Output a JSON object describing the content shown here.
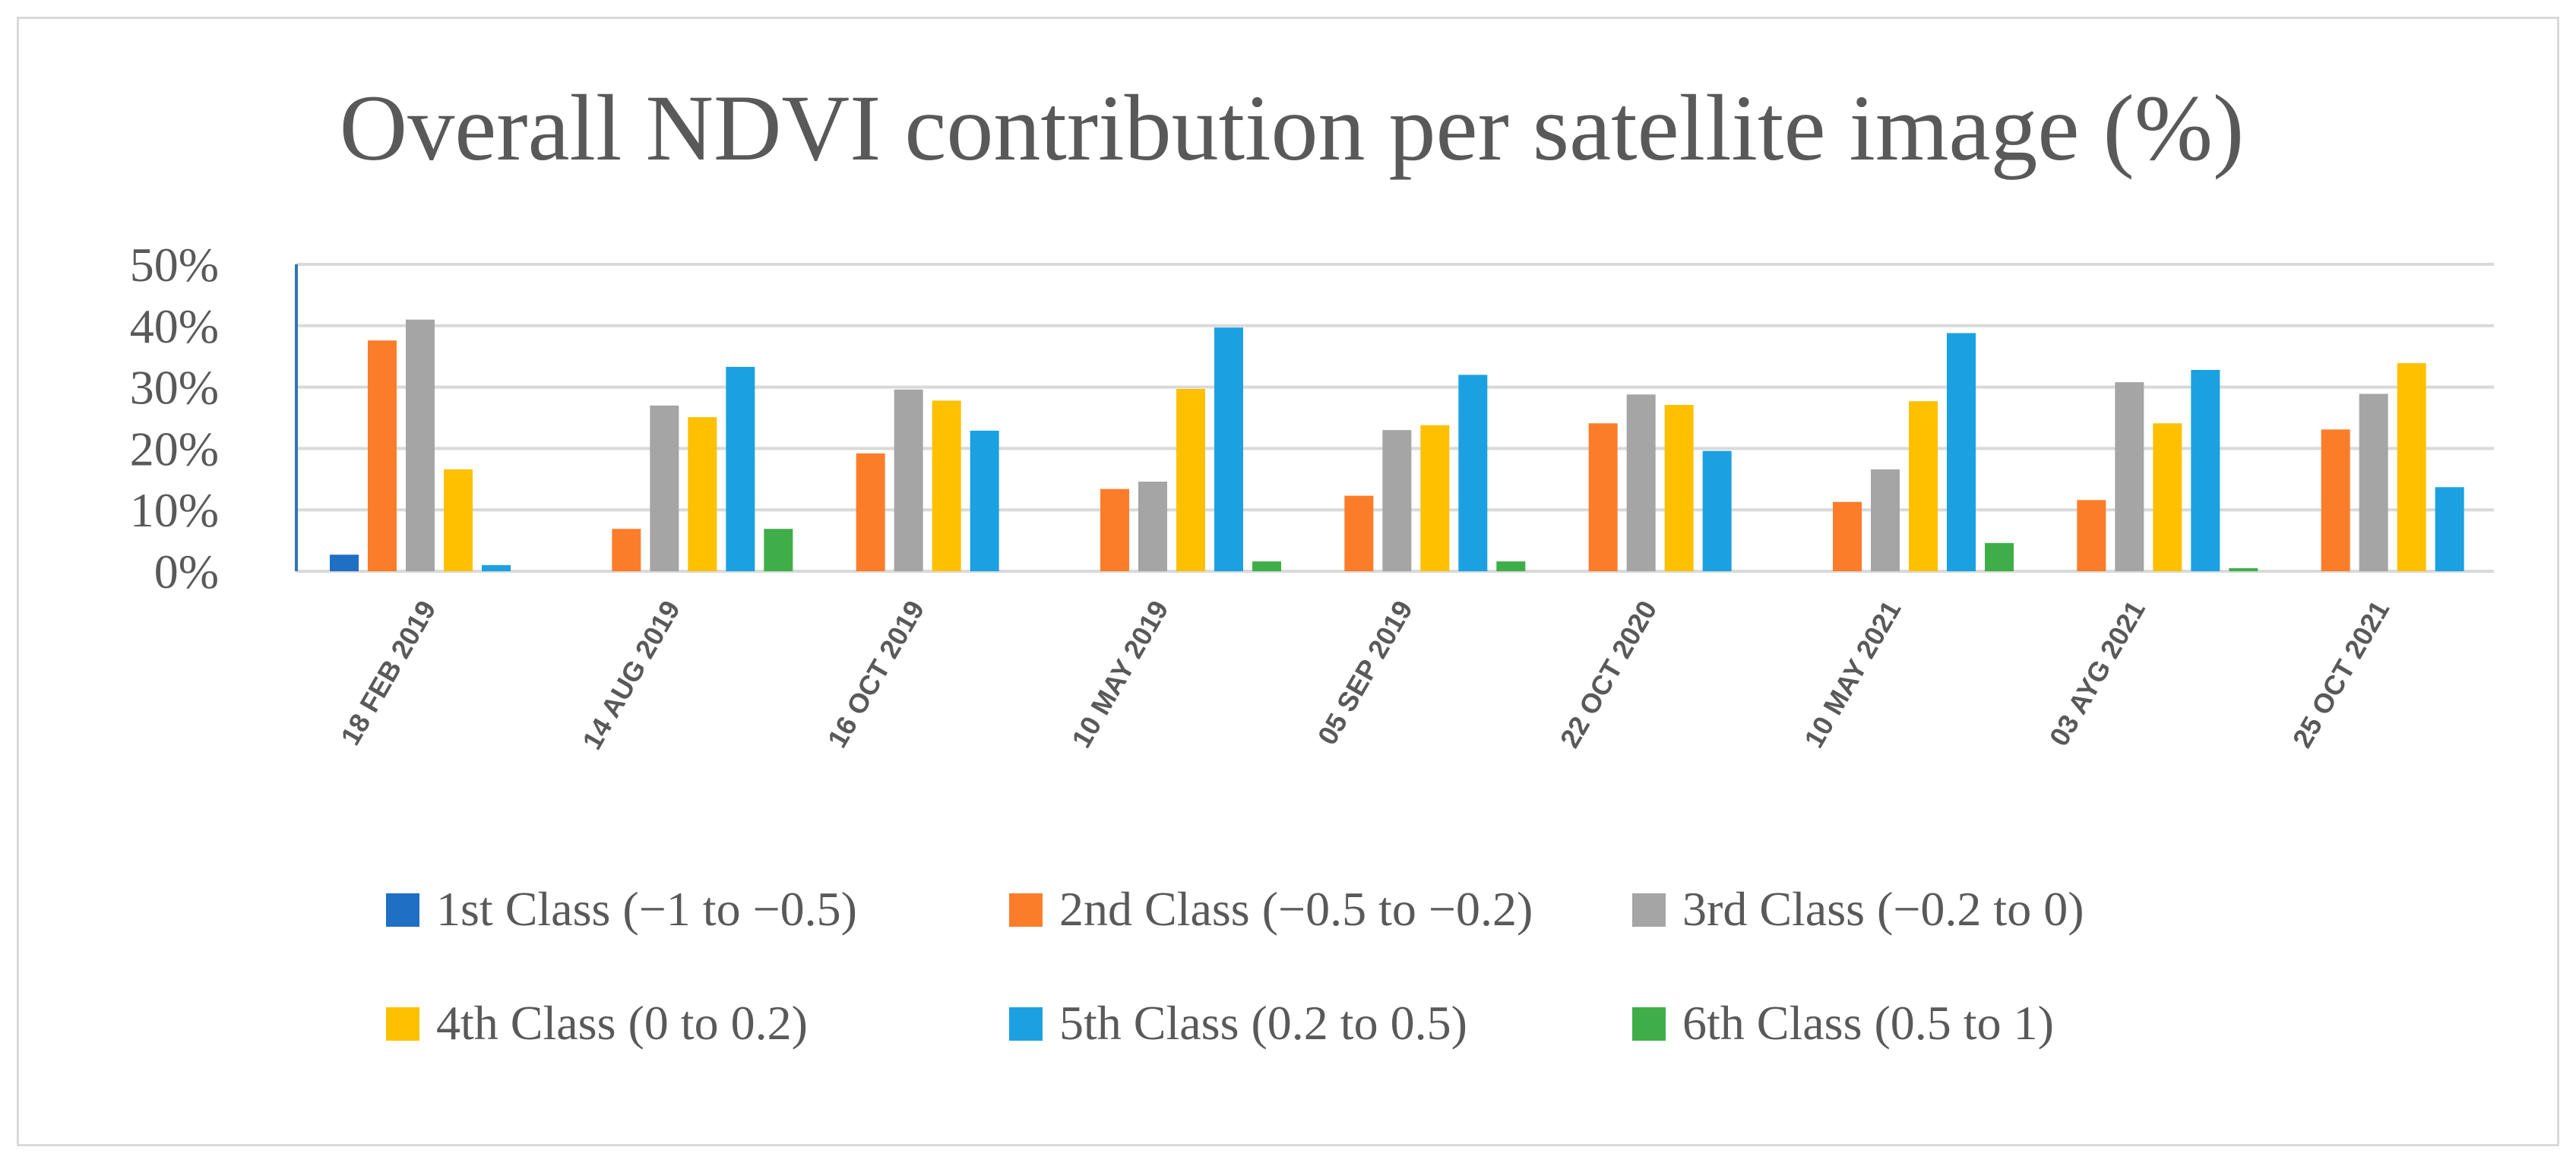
{
  "chart_data": {
    "type": "bar",
    "title": "Overall NDVI contribution per satellite image (%)",
    "xlabel": "",
    "ylabel": "",
    "ylim": [
      0,
      50
    ],
    "yticks": [
      0,
      10,
      20,
      30,
      40,
      50
    ],
    "ytick_labels": [
      "0%",
      "10%",
      "20%",
      "30%",
      "40%",
      "50%"
    ],
    "grid": true,
    "legend_position": "bottom",
    "categories": [
      "18 FEB 2019",
      "14 AUG 2019",
      "16 OCT 2019",
      "10 MAY 2019",
      "05 SEP 2019",
      "22 OCT 2020",
      "10 MAY 2021",
      "03 AYG 2021",
      "25 OCT 2021"
    ],
    "series": [
      {
        "name": "1st Class (−1 to −0.5)",
        "color": "#1f6fc5",
        "values": [
          2.7,
          0,
          0,
          0,
          0,
          0,
          0,
          0,
          0
        ]
      },
      {
        "name": "2nd Class (−0.5 to −0.2)",
        "color": "#fb7d2a",
        "values": [
          37.6,
          6.9,
          19.2,
          13.4,
          12.3,
          24.1,
          11.3,
          11.6,
          23.1
        ]
      },
      {
        "name": "3rd Class (−0.2 to 0)",
        "color": "#a5a5a5",
        "values": [
          41.0,
          27.0,
          29.6,
          14.6,
          23.0,
          28.8,
          16.6,
          30.8,
          28.9
        ]
      },
      {
        "name": "4th Class (0 to 0.2)",
        "color": "#ffc000",
        "values": [
          16.6,
          25.1,
          27.8,
          29.7,
          23.8,
          27.1,
          27.7,
          24.1,
          33.9
        ]
      },
      {
        "name": "5th Class (0.2 to 0.5)",
        "color": "#1ba1e2",
        "values": [
          1.0,
          33.3,
          22.9,
          39.7,
          32.0,
          19.6,
          38.8,
          32.8,
          13.7
        ]
      },
      {
        "name": "6th Class (0.5 to 1)",
        "color": "#3fae49",
        "values": [
          0,
          6.9,
          0,
          1.6,
          1.6,
          0,
          4.6,
          0.5,
          0
        ]
      }
    ]
  }
}
